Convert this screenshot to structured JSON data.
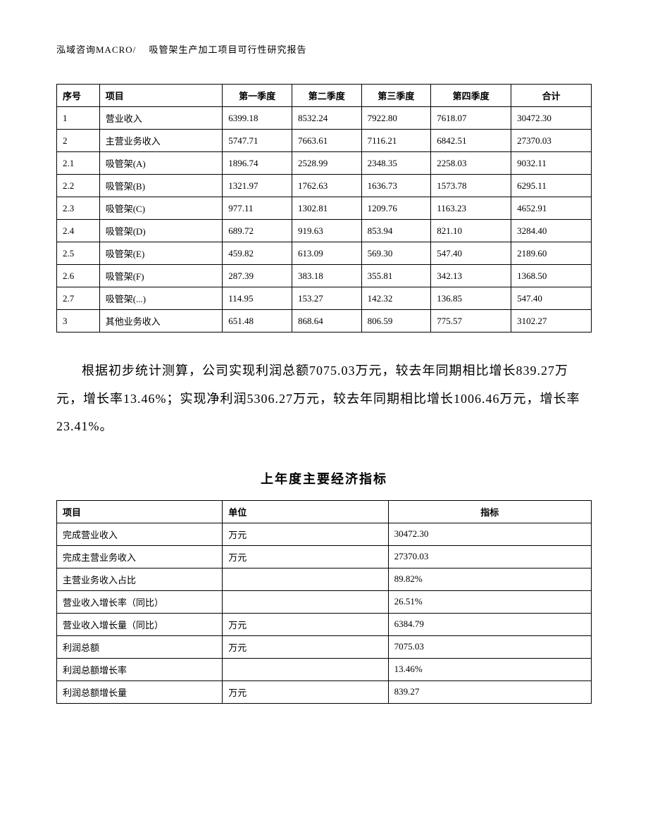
{
  "header": "泓域咨询MACRO/　 吸管架生产加工项目可行性研究报告",
  "table1": {
    "headers": [
      "序号",
      "项目",
      "第一季度",
      "第二季度",
      "第三季度",
      "第四季度",
      "合计"
    ],
    "rows": [
      [
        "1",
        "营业收入",
        "6399.18",
        "8532.24",
        "7922.80",
        "7618.07",
        "30472.30"
      ],
      [
        "2",
        "主营业务收入",
        "5747.71",
        "7663.61",
        "7116.21",
        "6842.51",
        "27370.03"
      ],
      [
        "2.1",
        "吸管架(A)",
        "1896.74",
        "2528.99",
        "2348.35",
        "2258.03",
        "9032.11"
      ],
      [
        "2.2",
        "吸管架(B)",
        "1321.97",
        "1762.63",
        "1636.73",
        "1573.78",
        "6295.11"
      ],
      [
        "2.3",
        "吸管架(C)",
        "977.11",
        "1302.81",
        "1209.76",
        "1163.23",
        "4652.91"
      ],
      [
        "2.4",
        "吸管架(D)",
        "689.72",
        "919.63",
        "853.94",
        "821.10",
        "3284.40"
      ],
      [
        "2.5",
        "吸管架(E)",
        "459.82",
        "613.09",
        "569.30",
        "547.40",
        "2189.60"
      ],
      [
        "2.6",
        "吸管架(F)",
        "287.39",
        "383.18",
        "355.81",
        "342.13",
        "1368.50"
      ],
      [
        "2.7",
        "吸管架(...)",
        "114.95",
        "153.27",
        "142.32",
        "136.85",
        "547.40"
      ],
      [
        "3",
        "其他业务收入",
        "651.48",
        "868.64",
        "806.59",
        "775.57",
        "3102.27"
      ]
    ]
  },
  "paragraph": "根据初步统计测算，公司实现利润总额7075.03万元，较去年同期相比增长839.27万元，增长率13.46%；实现净利润5306.27万元，较去年同期相比增长1006.46万元，增长率23.41%。",
  "section_title": "上年度主要经济指标",
  "table2": {
    "headers": [
      "项目",
      "单位",
      "指标"
    ],
    "rows": [
      [
        "完成营业收入",
        "万元",
        "30472.30"
      ],
      [
        "完成主营业务收入",
        "万元",
        "27370.03"
      ],
      [
        "主营业务收入占比",
        "",
        "89.82%"
      ],
      [
        "营业收入增长率（同比）",
        "",
        "26.51%"
      ],
      [
        "营业收入增长量（同比）",
        "万元",
        "6384.79"
      ],
      [
        "利润总额",
        "万元",
        "7075.03"
      ],
      [
        "利润总额增长率",
        "",
        "13.46%"
      ],
      [
        "利润总额增长量",
        "万元",
        "839.27"
      ]
    ]
  }
}
